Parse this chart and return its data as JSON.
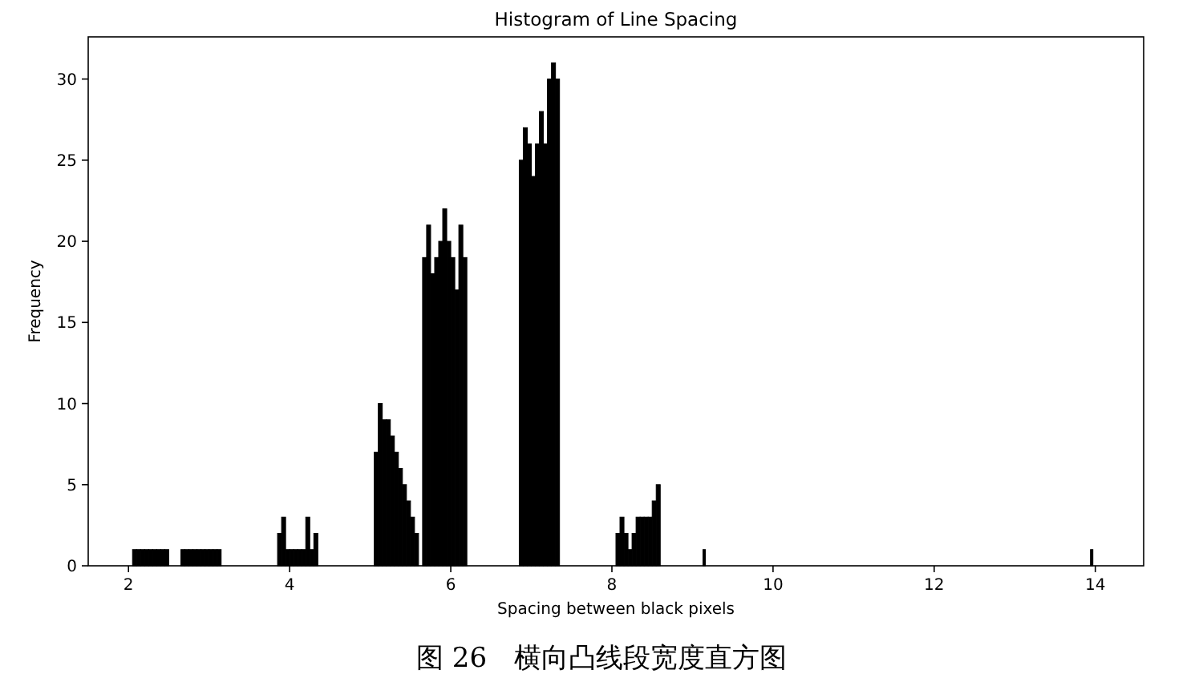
{
  "chart_data": {
    "type": "histogram",
    "title": "Histogram of Line Spacing",
    "xlabel": "Spacing between black pixels",
    "ylabel": "Frequency",
    "annotations": [
      "图 26　横向凸线段宽度直方图"
    ],
    "color": "#000000",
    "xlim": [
      1.5,
      14.6
    ],
    "xticks": [
      2,
      4,
      6,
      8,
      10,
      12,
      14
    ],
    "ylim": [
      0,
      32.6
    ],
    "yticks": [
      0,
      5,
      10,
      15,
      20,
      25,
      30
    ],
    "grid": false,
    "bins": [
      2.05,
      2.1,
      2.15,
      2.2,
      2.25,
      2.3,
      2.35,
      2.4,
      2.45,
      2.5,
      2.65,
      2.7,
      2.75,
      2.8,
      2.85,
      2.9,
      2.95,
      3,
      3.05,
      3.1,
      3.15,
      3.85,
      3.9,
      3.95,
      4,
      4.05,
      4.1,
      4.15,
      4.2,
      4.25,
      4.3,
      4.35,
      5.05,
      5.1,
      5.15,
      5.2,
      5.25,
      5.3,
      5.35,
      5.4,
      5.45,
      5.5,
      5.55,
      5.6,
      5.65,
      5.7,
      5.75,
      5.8,
      5.85,
      5.9,
      5.95,
      6,
      6.05,
      6.1,
      6.15,
      6.2,
      6.85,
      6.9,
      6.95,
      7,
      7.05,
      7.1,
      7.15,
      7.2,
      7.25,
      7.3,
      7.35,
      8.05,
      8.1,
      8.15,
      8.2,
      8.25,
      8.3,
      8.35,
      8.4,
      8.45,
      8.5,
      8.55,
      8.6,
      9.13,
      9.16,
      13.94,
      13.97
    ],
    "values": [
      1,
      1,
      1,
      1,
      1,
      1,
      1,
      1,
      1,
      0,
      1,
      1,
      1,
      1,
      1,
      1,
      1,
      1,
      1,
      1,
      0,
      2,
      3,
      1,
      1,
      1,
      1,
      1,
      3,
      1,
      2,
      0,
      7,
      10,
      9,
      9,
      8,
      7,
      6,
      5,
      4,
      3,
      2,
      0,
      19,
      21,
      18,
      19,
      20,
      22,
      20,
      19,
      17,
      21,
      19,
      0,
      25,
      27,
      26,
      24,
      26,
      28,
      26,
      30,
      31,
      30,
      0,
      2,
      3,
      2,
      1,
      2,
      3,
      3,
      3,
      3,
      4,
      5,
      0,
      1,
      0,
      1
    ]
  }
}
